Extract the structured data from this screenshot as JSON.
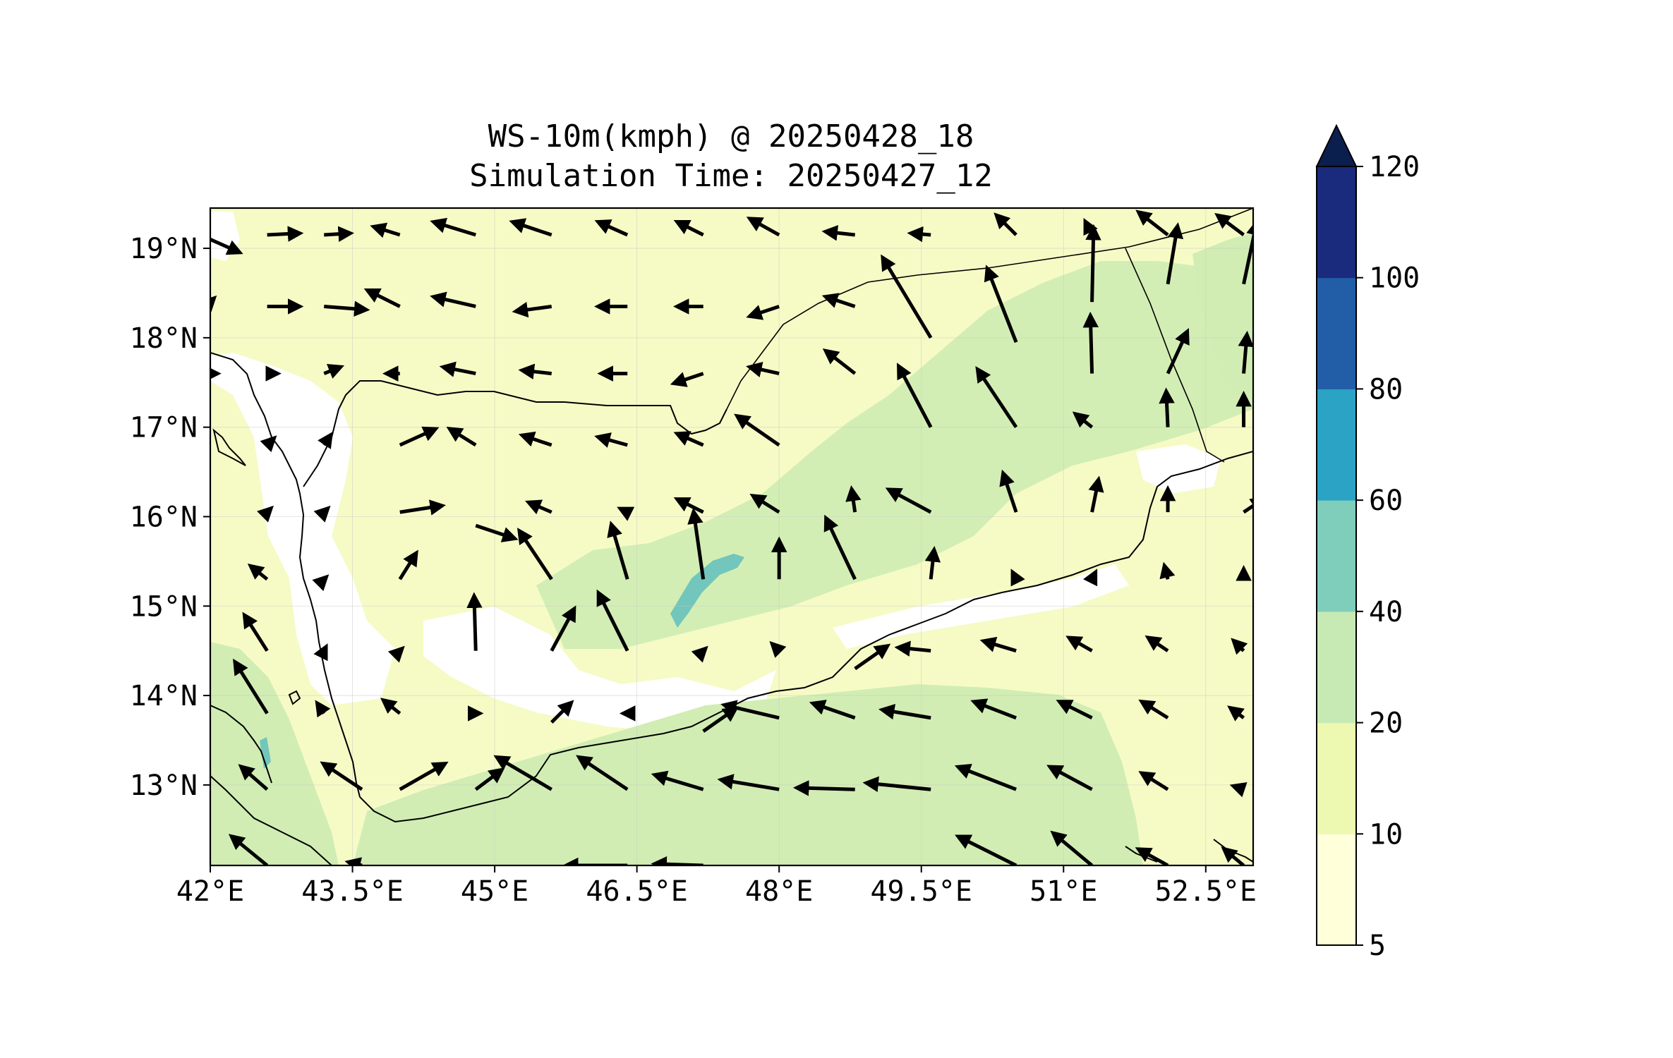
{
  "title": {
    "line1": "WS-10m(kmph) @ 20250428_18",
    "line2": "Simulation Time: 20250427_12"
  },
  "map": {
    "lon_range": [
      42.0,
      53.0
    ],
    "lat_range": [
      12.1,
      19.45
    ],
    "lon_ticks": [
      {
        "value": 42.0,
        "label": "42°E"
      },
      {
        "value": 43.5,
        "label": "43.5°E"
      },
      {
        "value": 45.0,
        "label": "45°E"
      },
      {
        "value": 46.5,
        "label": "46.5°E"
      },
      {
        "value": 48.0,
        "label": "48°E"
      },
      {
        "value": 49.5,
        "label": "49.5°E"
      },
      {
        "value": 51.0,
        "label": "51°E"
      },
      {
        "value": 52.5,
        "label": "52.5°E"
      }
    ],
    "lat_ticks": [
      {
        "value": 19.0,
        "label": "19°N"
      },
      {
        "value": 18.0,
        "label": "18°N"
      },
      {
        "value": 17.0,
        "label": "17°N"
      },
      {
        "value": 16.0,
        "label": "16°N"
      },
      {
        "value": 15.0,
        "label": "15°N"
      },
      {
        "value": 14.0,
        "label": "14°N"
      },
      {
        "value": 13.0,
        "label": "13°N"
      }
    ],
    "grid": true,
    "layer_colors": {
      "land_light": "#f6fbc6",
      "mid_band": "#d1edb3",
      "peak": "#72c6bb",
      "calm": "#ffffff",
      "coast": "#000000",
      "arrow": "#000000"
    }
  },
  "colorbar": {
    "levels": [
      {
        "label": "120",
        "value": 120
      },
      {
        "label": "100",
        "value": 100
      },
      {
        "label": "80",
        "value": 80
      },
      {
        "label": "60",
        "value": 60
      },
      {
        "label": "40",
        "value": 40
      },
      {
        "label": "20",
        "value": 20
      },
      {
        "label": "10",
        "value": 10
      },
      {
        "label": "5",
        "value": 5
      }
    ],
    "colors": [
      "#ffffd9",
      "#edf8b1",
      "#c7e9b4",
      "#7fcdbb",
      "#2aa3c4",
      "#225ea8",
      "#1a2a7d"
    ],
    "extend_color": "#0b1f4e",
    "extend": "max"
  },
  "wind_vectors": [
    {
      "lon": 42.0,
      "lat": 19.1,
      "u": 0.9,
      "v": -0.4
    },
    {
      "lon": 42.6,
      "lat": 19.15,
      "u": 1.0,
      "v": 0.05
    },
    {
      "lon": 43.2,
      "lat": 19.15,
      "u": 0.8,
      "v": 0.05
    },
    {
      "lon": 44.0,
      "lat": 19.15,
      "u": -0.8,
      "v": 0.25
    },
    {
      "lon": 44.8,
      "lat": 19.15,
      "u": -1.3,
      "v": 0.4
    },
    {
      "lon": 45.6,
      "lat": 19.15,
      "u": -1.2,
      "v": 0.4
    },
    {
      "lon": 46.4,
      "lat": 19.15,
      "u": -0.9,
      "v": 0.4
    },
    {
      "lon": 47.2,
      "lat": 19.15,
      "u": -0.8,
      "v": 0.4
    },
    {
      "lon": 48.0,
      "lat": 19.15,
      "u": -0.9,
      "v": 0.5
    },
    {
      "lon": 48.8,
      "lat": 19.15,
      "u": -0.9,
      "v": 0.1
    },
    {
      "lon": 49.6,
      "lat": 19.15,
      "u": -0.6,
      "v": 0.05
    },
    {
      "lon": 50.5,
      "lat": 19.15,
      "u": -0.6,
      "v": 0.6
    },
    {
      "lon": 51.3,
      "lat": 19.15,
      "u": -0.2,
      "v": 0.4
    },
    {
      "lon": 52.1,
      "lat": 19.15,
      "u": -0.9,
      "v": 0.7
    },
    {
      "lon": 52.9,
      "lat": 19.15,
      "u": -0.8,
      "v": 0.6
    },
    {
      "lon": 42.0,
      "lat": 18.4,
      "u": 0.1,
      "v": 0.1
    },
    {
      "lon": 42.6,
      "lat": 18.35,
      "u": 1.0,
      "v": 0.0
    },
    {
      "lon": 43.2,
      "lat": 18.35,
      "u": 1.3,
      "v": -0.1
    },
    {
      "lon": 44.0,
      "lat": 18.35,
      "u": -1.0,
      "v": 0.5
    },
    {
      "lon": 44.8,
      "lat": 18.35,
      "u": -1.3,
      "v": 0.3
    },
    {
      "lon": 45.6,
      "lat": 18.35,
      "u": -1.1,
      "v": -0.15
    },
    {
      "lon": 46.4,
      "lat": 18.35,
      "u": -0.9,
      "v": 0.0
    },
    {
      "lon": 47.2,
      "lat": 18.35,
      "u": -0.8,
      "v": 0.0
    },
    {
      "lon": 48.0,
      "lat": 18.35,
      "u": -0.9,
      "v": -0.3
    },
    {
      "lon": 48.8,
      "lat": 18.35,
      "u": -0.9,
      "v": 0.3
    },
    {
      "lon": 49.6,
      "lat": 18.0,
      "u": -1.5,
      "v": 2.5
    },
    {
      "lon": 50.5,
      "lat": 17.95,
      "u": -0.9,
      "v": 2.3
    },
    {
      "lon": 51.3,
      "lat": 18.4,
      "u": 0.05,
      "v": 2.3
    },
    {
      "lon": 52.1,
      "lat": 18.6,
      "u": 0.3,
      "v": 1.8
    },
    {
      "lon": 52.9,
      "lat": 18.6,
      "u": 0.4,
      "v": 1.9
    },
    {
      "lon": 51.3,
      "lat": 17.6,
      "u": -0.05,
      "v": 1.8
    },
    {
      "lon": 52.1,
      "lat": 17.6,
      "u": 0.6,
      "v": 1.3
    },
    {
      "lon": 52.9,
      "lat": 17.6,
      "u": 0.1,
      "v": 1.2
    },
    {
      "lon": 42.0,
      "lat": 17.6,
      "u": 0.2,
      "v": 0.0
    },
    {
      "lon": 42.6,
      "lat": 17.6,
      "u": 0.3,
      "v": 0.0
    },
    {
      "lon": 43.2,
      "lat": 17.6,
      "u": 0.5,
      "v": 0.2
    },
    {
      "lon": 44.0,
      "lat": 17.6,
      "u": -0.4,
      "v": 0.0
    },
    {
      "lon": 44.8,
      "lat": 17.6,
      "u": -1.0,
      "v": 0.2
    },
    {
      "lon": 45.6,
      "lat": 17.6,
      "u": -0.9,
      "v": 0.1
    },
    {
      "lon": 46.4,
      "lat": 17.6,
      "u": -0.8,
      "v": 0.0
    },
    {
      "lon": 47.2,
      "lat": 17.6,
      "u": -0.9,
      "v": -0.3
    },
    {
      "lon": 48.0,
      "lat": 17.6,
      "u": -0.9,
      "v": 0.2
    },
    {
      "lon": 48.8,
      "lat": 17.6,
      "u": -0.9,
      "v": 0.7
    },
    {
      "lon": 49.6,
      "lat": 17.0,
      "u": -1.0,
      "v": 1.9
    },
    {
      "lon": 50.5,
      "lat": 17.0,
      "u": -1.2,
      "v": 1.8
    },
    {
      "lon": 51.3,
      "lat": 17.0,
      "u": -0.5,
      "v": 0.4
    },
    {
      "lon": 52.1,
      "lat": 17.0,
      "u": -0.05,
      "v": 1.1
    },
    {
      "lon": 52.9,
      "lat": 17.0,
      "u": 0.0,
      "v": 1.0
    },
    {
      "lon": 42.6,
      "lat": 16.8,
      "u": 0.2,
      "v": 0.2
    },
    {
      "lon": 43.2,
      "lat": 16.8,
      "u": 0.2,
      "v": 0.3
    },
    {
      "lon": 44.0,
      "lat": 16.8,
      "u": 1.1,
      "v": 0.5
    },
    {
      "lon": 44.8,
      "lat": 16.8,
      "u": -0.8,
      "v": 0.5
    },
    {
      "lon": 45.6,
      "lat": 16.8,
      "u": -0.9,
      "v": 0.3
    },
    {
      "lon": 46.4,
      "lat": 16.8,
      "u": -0.9,
      "v": 0.25
    },
    {
      "lon": 47.2,
      "lat": 16.8,
      "u": -0.8,
      "v": 0.35
    },
    {
      "lon": 48.0,
      "lat": 16.8,
      "u": -1.3,
      "v": 0.9
    },
    {
      "lon": 42.6,
      "lat": 16.05,
      "u": 0.1,
      "v": 0.1
    },
    {
      "lon": 43.2,
      "lat": 16.05,
      "u": 0.1,
      "v": 0.1
    },
    {
      "lon": 44.0,
      "lat": 16.05,
      "u": 1.3,
      "v": 0.2
    },
    {
      "lon": 44.8,
      "lat": 15.9,
      "u": 1.2,
      "v": -0.4
    },
    {
      "lon": 45.6,
      "lat": 15.3,
      "u": -1.0,
      "v": 1.5
    },
    {
      "lon": 46.4,
      "lat": 15.3,
      "u": -0.5,
      "v": 1.7
    },
    {
      "lon": 47.2,
      "lat": 15.3,
      "u": -0.3,
      "v": 2.1
    },
    {
      "lon": 48.0,
      "lat": 15.3,
      "u": 0.0,
      "v": 1.2
    },
    {
      "lon": 48.8,
      "lat": 15.3,
      "u": -0.9,
      "v": 1.9
    },
    {
      "lon": 49.6,
      "lat": 15.3,
      "u": 0.1,
      "v": 0.9
    },
    {
      "lon": 45.6,
      "lat": 16.05,
      "u": -0.7,
      "v": 0.3
    },
    {
      "lon": 46.4,
      "lat": 16.05,
      "u": -0.2,
      "v": 0.1
    },
    {
      "lon": 47.2,
      "lat": 16.05,
      "u": -0.8,
      "v": 0.4
    },
    {
      "lon": 48.0,
      "lat": 16.05,
      "u": -0.8,
      "v": 0.5
    },
    {
      "lon": 48.8,
      "lat": 16.05,
      "u": -0.1,
      "v": 0.7
    },
    {
      "lon": 49.6,
      "lat": 16.05,
      "u": -1.3,
      "v": 0.7
    },
    {
      "lon": 50.5,
      "lat": 16.05,
      "u": -0.4,
      "v": 1.2
    },
    {
      "lon": 51.3,
      "lat": 16.05,
      "u": 0.2,
      "v": 1.0
    },
    {
      "lon": 52.1,
      "lat": 16.05,
      "u": 0.0,
      "v": 0.7
    },
    {
      "lon": 52.9,
      "lat": 16.05,
      "u": 0.6,
      "v": 0.4
    },
    {
      "lon": 42.6,
      "lat": 15.3,
      "u": -0.5,
      "v": 0.4
    },
    {
      "lon": 43.2,
      "lat": 15.3,
      "u": 0.05,
      "v": 0.05
    },
    {
      "lon": 44.0,
      "lat": 15.3,
      "u": 0.5,
      "v": 0.8
    },
    {
      "lon": 44.8,
      "lat": 14.5,
      "u": -0.05,
      "v": 1.7
    },
    {
      "lon": 45.6,
      "lat": 14.5,
      "u": 0.7,
      "v": 1.3
    },
    {
      "lon": 46.4,
      "lat": 14.5,
      "u": -0.9,
      "v": 1.8
    },
    {
      "lon": 50.5,
      "lat": 15.3,
      "u": -0.1,
      "v": 0.2
    },
    {
      "lon": 51.3,
      "lat": 15.3,
      "u": 0.1,
      "v": 0.2
    },
    {
      "lon": 52.1,
      "lat": 15.3,
      "u": -0.1,
      "v": 0.4
    },
    {
      "lon": 52.9,
      "lat": 15.3,
      "u": 0.0,
      "v": 0.3
    },
    {
      "lon": 42.6,
      "lat": 14.5,
      "u": -0.7,
      "v": 1.1
    },
    {
      "lon": 43.2,
      "lat": 14.5,
      "u": 0.05,
      "v": 0.1
    },
    {
      "lon": 44.0,
      "lat": 14.5,
      "u": 0.05,
      "v": 0.05
    },
    {
      "lon": 47.2,
      "lat": 14.5,
      "u": 0.05,
      "v": 0.05
    },
    {
      "lon": 48.0,
      "lat": 14.5,
      "u": -0.2,
      "v": 0.2
    },
    {
      "lon": 48.8,
      "lat": 14.3,
      "u": 1.0,
      "v": 0.7
    },
    {
      "lon": 49.6,
      "lat": 14.5,
      "u": -1.0,
      "v": 0.1
    },
    {
      "lon": 50.5,
      "lat": 14.5,
      "u": -1.0,
      "v": 0.3
    },
    {
      "lon": 51.3,
      "lat": 14.5,
      "u": -0.7,
      "v": 0.4
    },
    {
      "lon": 52.1,
      "lat": 14.5,
      "u": -0.6,
      "v": 0.4
    },
    {
      "lon": 52.9,
      "lat": 14.5,
      "u": -0.3,
      "v": 0.3
    },
    {
      "lon": 42.6,
      "lat": 13.8,
      "u": -1.0,
      "v": 1.6
    },
    {
      "lon": 43.2,
      "lat": 13.8,
      "u": -0.2,
      "v": 0.3
    },
    {
      "lon": 44.0,
      "lat": 13.8,
      "u": -0.5,
      "v": 0.4
    },
    {
      "lon": 44.8,
      "lat": 13.8,
      "u": 0.1,
      "v": 0.0
    },
    {
      "lon": 45.6,
      "lat": 13.7,
      "u": 0.6,
      "v": 0.6
    },
    {
      "lon": 46.4,
      "lat": 13.8,
      "u": -0.1,
      "v": 0.0
    },
    {
      "lon": 47.2,
      "lat": 13.6,
      "u": 1.0,
      "v": 0.7
    },
    {
      "lon": 48.0,
      "lat": 13.75,
      "u": -1.7,
      "v": 0.4
    },
    {
      "lon": 48.8,
      "lat": 13.75,
      "u": -1.3,
      "v": 0.45
    },
    {
      "lon": 49.6,
      "lat": 13.75,
      "u": -1.5,
      "v": 0.25
    },
    {
      "lon": 50.5,
      "lat": 13.75,
      "u": -1.3,
      "v": 0.5
    },
    {
      "lon": 51.3,
      "lat": 13.75,
      "u": -1.0,
      "v": 0.5
    },
    {
      "lon": 52.1,
      "lat": 13.75,
      "u": -0.8,
      "v": 0.5
    },
    {
      "lon": 52.9,
      "lat": 13.75,
      "u": -0.4,
      "v": 0.3
    },
    {
      "lon": 42.6,
      "lat": 12.95,
      "u": -0.8,
      "v": 0.7
    },
    {
      "lon": 43.6,
      "lat": 12.95,
      "u": -1.2,
      "v": 0.8
    },
    {
      "lon": 44.0,
      "lat": 12.95,
      "u": 1.4,
      "v": 0.8
    },
    {
      "lon": 44.8,
      "lat": 12.95,
      "u": 0.8,
      "v": 0.6
    },
    {
      "lon": 45.6,
      "lat": 12.95,
      "u": -1.7,
      "v": 1.0
    },
    {
      "lon": 46.4,
      "lat": 12.95,
      "u": -1.5,
      "v": 1.0
    },
    {
      "lon": 47.2,
      "lat": 12.95,
      "u": -1.5,
      "v": 0.45
    },
    {
      "lon": 48.0,
      "lat": 12.95,
      "u": -1.8,
      "v": 0.3
    },
    {
      "lon": 48.8,
      "lat": 12.95,
      "u": -1.8,
      "v": 0.05
    },
    {
      "lon": 49.6,
      "lat": 12.95,
      "u": -2.0,
      "v": 0.2
    },
    {
      "lon": 50.5,
      "lat": 12.95,
      "u": -1.8,
      "v": 0.7
    },
    {
      "lon": 51.3,
      "lat": 12.95,
      "u": -1.3,
      "v": 0.7
    },
    {
      "lon": 52.1,
      "lat": 12.95,
      "u": -0.8,
      "v": 0.5
    },
    {
      "lon": 52.9,
      "lat": 12.95,
      "u": -0.3,
      "v": 0.1
    },
    {
      "lon": 42.6,
      "lat": 12.1,
      "u": -1.1,
      "v": 0.9
    },
    {
      "lon": 43.6,
      "lat": 12.1,
      "u": -0.4,
      "v": 0.1
    },
    {
      "lon": 46.4,
      "lat": 12.1,
      "u": -1.9,
      "v": 0.0
    },
    {
      "lon": 47.2,
      "lat": 12.1,
      "u": -1.5,
      "v": 0.05
    },
    {
      "lon": 50.5,
      "lat": 12.1,
      "u": -1.8,
      "v": 0.9
    },
    {
      "lon": 51.3,
      "lat": 12.1,
      "u": -1.2,
      "v": 1.0
    },
    {
      "lon": 52.1,
      "lat": 12.1,
      "u": -0.9,
      "v": 0.5
    },
    {
      "lon": 52.9,
      "lat": 12.1,
      "u": -0.6,
      "v": 0.5
    }
  ]
}
